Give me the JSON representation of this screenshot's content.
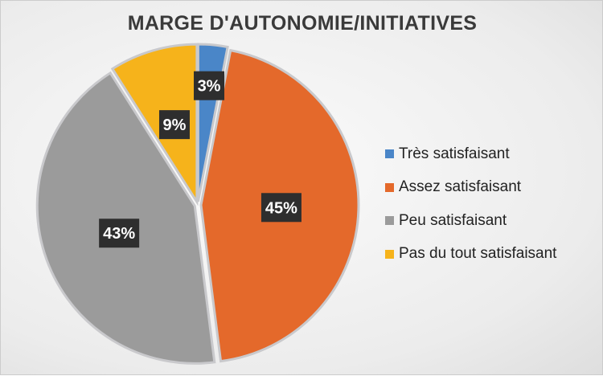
{
  "chart_data": {
    "type": "pie",
    "title": "MARGE D'AUTONOMIE/INITIATIVES",
    "categories": [
      "Très satisfaisant",
      "Assez satisfaisant",
      "Peu satisfaisant",
      "Pas du tout satisfaisant"
    ],
    "values": [
      3,
      45,
      43,
      9
    ],
    "labels": [
      "3%",
      "45%",
      "43%",
      "9%"
    ],
    "colors": [
      "#4a86c8",
      "#e4692b",
      "#9b9b9b",
      "#f6b31b"
    ],
    "legend_position": "right"
  }
}
